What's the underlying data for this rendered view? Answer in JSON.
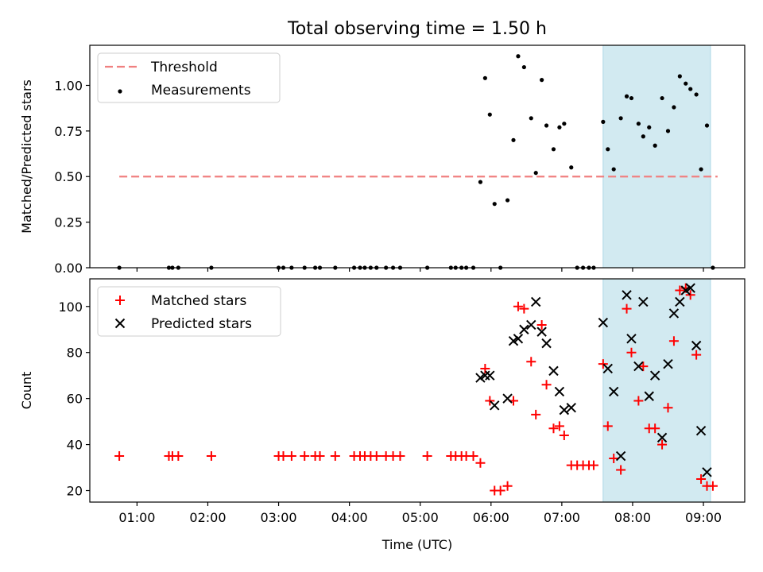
{
  "title": "Total observing time = 1.50 h",
  "colors": {
    "threshold": "#f08080",
    "measurement": "#000000",
    "matched": "#ff0000",
    "predicted": "#000000",
    "shade": "#add8e6"
  },
  "chart_data": [
    {
      "type": "scatter",
      "ylabel": "Matched/Predicted stars",
      "xlabel": "",
      "ylim": [
        0.0,
        1.22
      ],
      "yticks": [
        "0.00",
        "0.25",
        "0.50",
        "0.75",
        "1.00"
      ],
      "xlim": [
        "00:20",
        "09:35"
      ],
      "shaded_region": [
        "07:35",
        "09:06"
      ],
      "legend": {
        "position": "top-left",
        "entries": [
          {
            "label": "Threshold",
            "marker": "dashed-line"
          },
          {
            "label": "Measurements",
            "marker": "dot"
          }
        ]
      },
      "threshold": {
        "name": "Threshold",
        "y": 0.5,
        "x_range": [
          "00:45",
          "09:12"
        ]
      },
      "series": [
        {
          "name": "Measurements",
          "marker": "dot",
          "points": [
            [
              "00:45",
              0.0
            ],
            [
              "01:27",
              0.0
            ],
            [
              "01:30",
              0.0
            ],
            [
              "01:35",
              0.0
            ],
            [
              "02:03",
              0.0
            ],
            [
              "03:00",
              0.0
            ],
            [
              "03:04",
              0.0
            ],
            [
              "03:11",
              0.0
            ],
            [
              "03:22",
              0.0
            ],
            [
              "03:31",
              0.0
            ],
            [
              "03:35",
              0.0
            ],
            [
              "03:48",
              0.0
            ],
            [
              "04:04",
              0.0
            ],
            [
              "04:09",
              0.0
            ],
            [
              "04:13",
              0.0
            ],
            [
              "04:18",
              0.0
            ],
            [
              "04:23",
              0.0
            ],
            [
              "04:31",
              0.0
            ],
            [
              "04:37",
              0.0
            ],
            [
              "04:43",
              0.0
            ],
            [
              "05:06",
              0.0
            ],
            [
              "05:26",
              0.0
            ],
            [
              "05:30",
              0.0
            ],
            [
              "05:35",
              0.0
            ],
            [
              "05:39",
              0.0
            ],
            [
              "05:45",
              0.0
            ],
            [
              "05:51",
              0.47
            ],
            [
              "05:55",
              1.04
            ],
            [
              "05:59",
              0.84
            ],
            [
              "06:03",
              0.35
            ],
            [
              "06:08",
              0.0
            ],
            [
              "06:14",
              0.37
            ],
            [
              "06:19",
              0.7
            ],
            [
              "06:23",
              1.16
            ],
            [
              "06:28",
              1.1
            ],
            [
              "06:34",
              0.82
            ],
            [
              "06:38",
              0.52
            ],
            [
              "06:43",
              1.03
            ],
            [
              "06:47",
              0.78
            ],
            [
              "06:53",
              0.65
            ],
            [
              "06:58",
              0.77
            ],
            [
              "07:02",
              0.79
            ],
            [
              "07:08",
              0.55
            ],
            [
              "07:13",
              0.0
            ],
            [
              "07:18",
              0.0
            ],
            [
              "07:23",
              0.0
            ],
            [
              "07:27",
              0.0
            ],
            [
              "07:35",
              0.8
            ],
            [
              "07:39",
              0.65
            ],
            [
              "07:44",
              0.54
            ],
            [
              "07:50",
              0.82
            ],
            [
              "07:55",
              0.94
            ],
            [
              "07:59",
              0.93
            ],
            [
              "08:05",
              0.79
            ],
            [
              "08:09",
              0.72
            ],
            [
              "08:14",
              0.77
            ],
            [
              "08:19",
              0.67
            ],
            [
              "08:25",
              0.93
            ],
            [
              "08:30",
              0.75
            ],
            [
              "08:35",
              0.88
            ],
            [
              "08:40",
              1.05
            ],
            [
              "08:45",
              1.01
            ],
            [
              "08:49",
              0.98
            ],
            [
              "08:54",
              0.95
            ],
            [
              "08:58",
              0.54
            ],
            [
              "09:03",
              0.78
            ],
            [
              "09:08",
              0.0
            ]
          ]
        }
      ]
    },
    {
      "type": "scatter",
      "ylabel": "Count",
      "xlabel": "Time (UTC)",
      "ylim": [
        15,
        112
      ],
      "yticks": [
        "20",
        "40",
        "60",
        "80",
        "100"
      ],
      "xlim": [
        "00:20",
        "09:35"
      ],
      "xticks": [
        "01:00",
        "02:00",
        "03:00",
        "04:00",
        "05:00",
        "06:00",
        "07:00",
        "08:00",
        "09:00"
      ],
      "shaded_region": [
        "07:35",
        "09:06"
      ],
      "legend": {
        "position": "top-left",
        "entries": [
          {
            "label": "Matched stars",
            "marker": "plus"
          },
          {
            "label": "Predicted stars",
            "marker": "cross"
          }
        ]
      },
      "series": [
        {
          "name": "Matched stars",
          "marker": "plus",
          "points": [
            [
              "00:45",
              35
            ],
            [
              "01:27",
              35
            ],
            [
              "01:30",
              35
            ],
            [
              "01:35",
              35
            ],
            [
              "02:03",
              35
            ],
            [
              "03:00",
              35
            ],
            [
              "03:04",
              35
            ],
            [
              "03:11",
              35
            ],
            [
              "03:22",
              35
            ],
            [
              "03:31",
              35
            ],
            [
              "03:35",
              35
            ],
            [
              "03:48",
              35
            ],
            [
              "04:04",
              35
            ],
            [
              "04:09",
              35
            ],
            [
              "04:13",
              35
            ],
            [
              "04:18",
              35
            ],
            [
              "04:23",
              35
            ],
            [
              "04:31",
              35
            ],
            [
              "04:37",
              35
            ],
            [
              "04:43",
              35
            ],
            [
              "05:06",
              35
            ],
            [
              "05:26",
              35
            ],
            [
              "05:30",
              35
            ],
            [
              "05:35",
              35
            ],
            [
              "05:39",
              35
            ],
            [
              "05:45",
              35
            ],
            [
              "05:51",
              32
            ],
            [
              "05:55",
              73
            ],
            [
              "05:59",
              59
            ],
            [
              "06:03",
              20
            ],
            [
              "06:08",
              20
            ],
            [
              "06:14",
              22
            ],
            [
              "06:19",
              59
            ],
            [
              "06:23",
              100
            ],
            [
              "06:28",
              99
            ],
            [
              "06:34",
              76
            ],
            [
              "06:38",
              53
            ],
            [
              "06:43",
              92
            ],
            [
              "06:47",
              66
            ],
            [
              "06:53",
              47
            ],
            [
              "06:58",
              48
            ],
            [
              "07:02",
              44
            ],
            [
              "07:08",
              31
            ],
            [
              "07:13",
              31
            ],
            [
              "07:18",
              31
            ],
            [
              "07:23",
              31
            ],
            [
              "07:27",
              31
            ],
            [
              "07:35",
              75
            ],
            [
              "07:39",
              48
            ],
            [
              "07:44",
              34
            ],
            [
              "07:50",
              29
            ],
            [
              "07:55",
              99
            ],
            [
              "07:59",
              80
            ],
            [
              "08:05",
              59
            ],
            [
              "08:09",
              74
            ],
            [
              "08:14",
              47
            ],
            [
              "08:19",
              47
            ],
            [
              "08:25",
              40
            ],
            [
              "08:30",
              56
            ],
            [
              "08:35",
              85
            ],
            [
              "08:40",
              107
            ],
            [
              "08:45",
              108
            ],
            [
              "08:49",
              105
            ],
            [
              "08:54",
              79
            ],
            [
              "08:58",
              25
            ],
            [
              "09:03",
              22
            ],
            [
              "09:08",
              22
            ]
          ]
        },
        {
          "name": "Predicted stars",
          "marker": "cross",
          "points": [
            [
              "05:51",
              69
            ],
            [
              "05:55",
              70
            ],
            [
              "05:59",
              70
            ],
            [
              "06:03",
              57
            ],
            [
              "06:14",
              60
            ],
            [
              "06:19",
              85
            ],
            [
              "06:23",
              86
            ],
            [
              "06:28",
              90
            ],
            [
              "06:34",
              92
            ],
            [
              "06:38",
              102
            ],
            [
              "06:43",
              89
            ],
            [
              "06:47",
              84
            ],
            [
              "06:53",
              72
            ],
            [
              "06:58",
              63
            ],
            [
              "07:02",
              55
            ],
            [
              "07:08",
              56
            ],
            [
              "07:35",
              93
            ],
            [
              "07:39",
              73
            ],
            [
              "07:44",
              63
            ],
            [
              "07:50",
              35
            ],
            [
              "07:55",
              105
            ],
            [
              "07:59",
              86
            ],
            [
              "08:05",
              74
            ],
            [
              "08:09",
              102
            ],
            [
              "08:14",
              61
            ],
            [
              "08:19",
              70
            ],
            [
              "08:25",
              43
            ],
            [
              "08:30",
              75
            ],
            [
              "08:35",
              97
            ],
            [
              "08:40",
              102
            ],
            [
              "08:45",
              107
            ],
            [
              "08:49",
              108
            ],
            [
              "08:54",
              83
            ],
            [
              "08:58",
              46
            ],
            [
              "09:03",
              28
            ]
          ]
        }
      ]
    }
  ]
}
